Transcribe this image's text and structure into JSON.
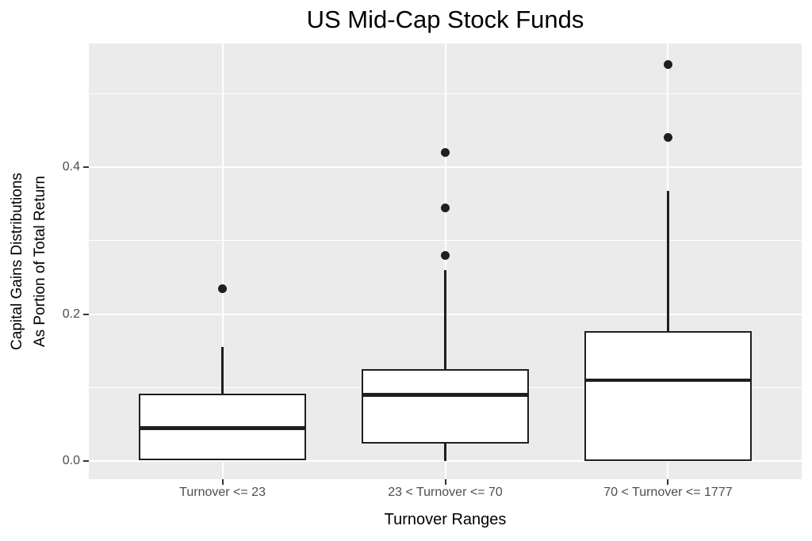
{
  "chart_data": {
    "type": "boxplot",
    "title": "US Mid-Cap Stock Funds",
    "xlabel": "Turnover Ranges",
    "ylabel": "Capital Gains Distributions\nAs Portion of Total Return",
    "categories": [
      "Turnover <= 23",
      "23 < Turnover <= 70",
      "70 < Turnover <= 1777"
    ],
    "series": [
      {
        "category": "Turnover <= 23",
        "whisker_low": 0.002,
        "q1": 0.002,
        "median": 0.045,
        "q3": 0.09,
        "whisker_high": 0.155,
        "outliers": [
          0.235
        ]
      },
      {
        "category": "23 < Turnover <= 70",
        "whisker_low": 0.0,
        "q1": 0.025,
        "median": 0.09,
        "q3": 0.124,
        "whisker_high": 0.26,
        "outliers": [
          0.28,
          0.345,
          0.42
        ]
      },
      {
        "category": "70 < Turnover <= 1777",
        "whisker_low": 0.001,
        "q1": 0.001,
        "median": 0.11,
        "q3": 0.175,
        "whisker_high": 0.368,
        "outliers": [
          0.44,
          0.54
        ]
      }
    ],
    "y_ticks": [
      0.0,
      0.2,
      0.4
    ],
    "y_tick_labels": [
      "0.0",
      "0.2",
      "0.4"
    ],
    "y_minor_ticks": [
      0.1,
      0.3,
      0.5
    ],
    "ylim": [
      -0.0248,
      0.5682
    ],
    "grid": true,
    "legend": false,
    "colors": {
      "panel_bg": "#EBEBEB",
      "grid": "#FFFFFF",
      "box_stroke": "#1F1F1F",
      "box_fill": "#FFFFFF",
      "outlier": "#1F1F1F",
      "tick_mark": "#333333",
      "tick_label": "#4D4D4D",
      "title": "#000000"
    }
  }
}
